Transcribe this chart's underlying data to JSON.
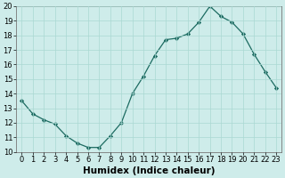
{
  "x": [
    0,
    1,
    2,
    3,
    4,
    5,
    6,
    7,
    8,
    9,
    10,
    11,
    12,
    13,
    14,
    15,
    16,
    17,
    18,
    19,
    20,
    21,
    22,
    23
  ],
  "y": [
    13.5,
    12.6,
    12.2,
    11.9,
    11.1,
    10.6,
    10.3,
    10.3,
    11.1,
    12.0,
    14.0,
    15.2,
    16.6,
    17.7,
    17.8,
    18.1,
    18.9,
    20.0,
    19.3,
    18.9,
    18.1,
    16.7,
    15.5,
    14.4
  ],
  "xlabel": "Humidex (Indice chaleur)",
  "ylim": [
    10,
    20
  ],
  "xlim_min": -0.5,
  "xlim_max": 23.5,
  "line_color": "#1c6b61",
  "marker": "D",
  "marker_size": 2.2,
  "bg_color": "#ceecea",
  "grid_color": "#aad8d3",
  "tick_fontsize": 6.0,
  "label_fontsize": 7.5
}
